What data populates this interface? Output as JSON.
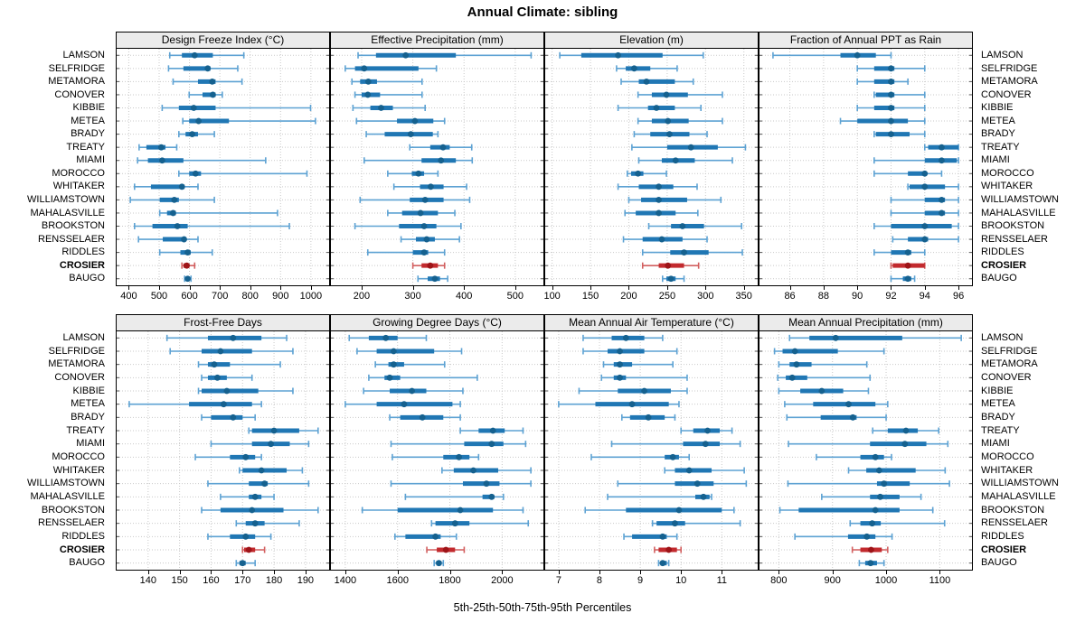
{
  "title": "Annual Climate: sibling",
  "footer": "5th-25th-50th-75th-95th Percentiles",
  "colors": {
    "blue_bar": "#2077b4",
    "blue_line": "#5da2d3",
    "blue_dot": "#15618f",
    "red_bar": "#c22a2e",
    "red_line": "#d25f5f",
    "red_dot": "#9e1418",
    "header_bg": "#ebebeb",
    "grid": "#c9c9c9",
    "edge_tick": "#555555"
  },
  "chart_data": {
    "type": "scatter",
    "subtype": "percentile-dot-interval",
    "percentiles": [
      5,
      25,
      50,
      75,
      95
    ],
    "grid": "dotted",
    "highlight_station": "CROSIER",
    "stations": [
      "LAMSON",
      "SELFRIDGE",
      "METAMORA",
      "CONOVER",
      "KIBBIE",
      "METEA",
      "BRADY",
      "TREATY",
      "MIAMI",
      "MOROCCO",
      "WHITAKER",
      "WILLIAMSTOWN",
      "MAHALASVILLE",
      "BROOKSTON",
      "RENSSELAER",
      "RIDDLES",
      "CROSIER",
      "BAUGO"
    ],
    "panels": [
      {
        "title": "Design Freeze Index (°C)",
        "row": 0,
        "xlim": [
          360,
          1060
        ],
        "ticks": [
          400,
          500,
          600,
          700,
          800,
          900,
          1000
        ],
        "values": [
          [
            535,
            575,
            617,
            677,
            779
          ],
          [
            531,
            580,
            660,
            669,
            759
          ],
          [
            546,
            628,
            675,
            686,
            773
          ],
          [
            599,
            643,
            677,
            686,
            708
          ],
          [
            510,
            565,
            614,
            686,
            999
          ],
          [
            578,
            599,
            630,
            730,
            1015
          ],
          [
            565,
            587,
            609,
            628,
            682
          ],
          [
            434,
            458,
            507,
            521,
            558
          ],
          [
            429,
            463,
            510,
            580,
            851
          ],
          [
            565,
            599,
            620,
            638,
            987
          ],
          [
            419,
            473,
            575,
            584,
            628
          ],
          [
            405,
            502,
            550,
            565,
            682
          ],
          [
            502,
            526,
            546,
            555,
            890
          ],
          [
            419,
            478,
            560,
            594,
            929
          ],
          [
            432,
            512,
            582,
            589,
            628
          ],
          [
            502,
            570,
            594,
            604,
            675
          ],
          [
            575,
            580,
            591,
            600,
            617
          ],
          [
            584,
            589,
            594,
            600,
            605
          ]
        ]
      },
      {
        "title": "Effective Precipitation (mm)",
        "row": 0,
        "xlim": [
          140,
          555
        ],
        "ticks": [
          200,
          300,
          400,
          500
        ],
        "values": [
          [
            193,
            228,
            286,
            384,
            531
          ],
          [
            168,
            187,
            205,
            311,
            346
          ],
          [
            181,
            197,
            213,
            230,
            318
          ],
          [
            187,
            200,
            212,
            236,
            318
          ],
          [
            183,
            217,
            238,
            261,
            324
          ],
          [
            190,
            269,
            304,
            340,
            362
          ],
          [
            209,
            245,
            296,
            339,
            349
          ],
          [
            294,
            334,
            359,
            372,
            415
          ],
          [
            205,
            317,
            355,
            384,
            416
          ],
          [
            251,
            298,
            311,
            322,
            349
          ],
          [
            263,
            314,
            335,
            360,
            405
          ],
          [
            197,
            294,
            324,
            360,
            411
          ],
          [
            251,
            279,
            315,
            349,
            382
          ],
          [
            187,
            273,
            322,
            346,
            394
          ],
          [
            277,
            306,
            327,
            343,
            391
          ],
          [
            212,
            300,
            322,
            330,
            362
          ],
          [
            300,
            317,
            334,
            349,
            362
          ],
          [
            310,
            329,
            343,
            353,
            368
          ]
        ]
      },
      {
        "title": "Elevation (m)",
        "row": 0,
        "xlim": [
          91,
          368
        ],
        "ticks": [
          100,
          150,
          200,
          250,
          300,
          350
        ],
        "values": [
          [
            110,
            138,
            186,
            244,
            297
          ],
          [
            184,
            196,
            207,
            228,
            263
          ],
          [
            190,
            213,
            223,
            260,
            284
          ],
          [
            212,
            230,
            249,
            277,
            322
          ],
          [
            186,
            225,
            236,
            260,
            294
          ],
          [
            212,
            230,
            251,
            278,
            322
          ],
          [
            207,
            228,
            253,
            279,
            302
          ],
          [
            204,
            250,
            281,
            316,
            352
          ],
          [
            213,
            243,
            261,
            286,
            335
          ],
          [
            198,
            203,
            212,
            219,
            249
          ],
          [
            186,
            213,
            239,
            258,
            289
          ],
          [
            200,
            216,
            239,
            276,
            320
          ],
          [
            195,
            209,
            239,
            261,
            290
          ],
          [
            226,
            255,
            270,
            298,
            347
          ],
          [
            193,
            218,
            243,
            270,
            302
          ],
          [
            218,
            254,
            272,
            304,
            348
          ],
          [
            218,
            239,
            251,
            272,
            291
          ],
          [
            244,
            249,
            255,
            261,
            272
          ]
        ]
      },
      {
        "title": "Fraction of Annual PPT as Rain",
        "row": 0,
        "xlim": [
          84.2,
          96.8
        ],
        "ticks": [
          86,
          88,
          90,
          92,
          94,
          96
        ],
        "values": [
          [
            85.0,
            89.0,
            90.0,
            91.1,
            92.0
          ],
          [
            90.0,
            91.0,
            92.0,
            92.2,
            94.0
          ],
          [
            90.0,
            91.0,
            92.0,
            92.2,
            93.0
          ],
          [
            91.0,
            91.1,
            92.0,
            92.2,
            94.0
          ],
          [
            90.0,
            91.0,
            92.0,
            92.2,
            94.0
          ],
          [
            89.0,
            90.0,
            92.0,
            93.0,
            94.0
          ],
          [
            91.0,
            91.1,
            92.0,
            93.1,
            94.0
          ],
          [
            94.0,
            94.2,
            95.0,
            96.0,
            96.0
          ],
          [
            91.0,
            94.0,
            95.0,
            95.9,
            96.0
          ],
          [
            91.0,
            93.0,
            94.0,
            94.1,
            95.0
          ],
          [
            93.0,
            93.1,
            94.0,
            95.2,
            96.0
          ],
          [
            92.0,
            94.0,
            95.0,
            95.2,
            96.0
          ],
          [
            92.0,
            94.0,
            95.0,
            95.2,
            96.0
          ],
          [
            91.0,
            92.0,
            94.0,
            95.6,
            96.0
          ],
          [
            92.1,
            93.0,
            94.0,
            94.2,
            96.0
          ],
          [
            91.0,
            92.0,
            93.0,
            93.2,
            94.0
          ],
          [
            92.0,
            92.1,
            93.0,
            94.0,
            94.0
          ],
          [
            92.0,
            92.7,
            93.0,
            93.2,
            93.4
          ]
        ]
      },
      {
        "title": "Frost-Free Days",
        "row": 1,
        "xlim": [
          130,
          197.5
        ],
        "ticks": [
          140,
          150,
          160,
          170,
          180,
          190
        ],
        "values": [
          [
            146,
            159,
            167,
            176,
            184
          ],
          [
            147,
            157,
            163,
            173,
            186
          ],
          [
            156,
            159,
            161,
            166,
            182
          ],
          [
            157,
            159,
            162,
            165,
            173
          ],
          [
            156,
            157,
            165,
            175,
            186
          ],
          [
            134,
            153,
            164,
            173,
            176
          ],
          [
            157,
            160,
            167,
            170,
            174
          ],
          [
            172,
            173,
            180,
            188,
            194
          ],
          [
            160,
            173,
            179,
            185,
            191
          ],
          [
            155,
            166,
            171,
            174,
            176
          ],
          [
            169,
            170,
            176,
            184,
            189
          ],
          [
            159,
            172,
            177,
            178,
            191
          ],
          [
            163,
            172,
            174,
            176,
            180
          ],
          [
            157,
            163,
            173,
            183,
            194
          ],
          [
            168,
            171,
            174,
            177,
            188
          ],
          [
            159,
            166,
            171,
            174,
            179
          ],
          [
            170,
            170.5,
            172,
            174,
            177
          ],
          [
            168,
            169,
            170,
            171,
            174
          ]
        ]
      },
      {
        "title": "Growing Degree Days (°C)",
        "row": 1,
        "xlim": [
          1345,
          2158
        ],
        "ticks": [
          1400,
          1600,
          1800,
          2000
        ],
        "values": [
          [
            1415,
            1490,
            1555,
            1600,
            1710
          ],
          [
            1445,
            1520,
            1585,
            1740,
            1845
          ],
          [
            1515,
            1565,
            1585,
            1625,
            1780
          ],
          [
            1490,
            1550,
            1570,
            1610,
            1905
          ],
          [
            1470,
            1570,
            1655,
            1710,
            1850
          ],
          [
            1400,
            1520,
            1625,
            1810,
            1840
          ],
          [
            1570,
            1610,
            1695,
            1775,
            1840
          ],
          [
            1840,
            1910,
            1965,
            2010,
            2080
          ],
          [
            1575,
            1855,
            1960,
            2005,
            2090
          ],
          [
            1580,
            1775,
            1835,
            1875,
            1910
          ],
          [
            1770,
            1815,
            1890,
            1985,
            2110
          ],
          [
            1575,
            1850,
            1940,
            1990,
            2110
          ],
          [
            1630,
            1925,
            1960,
            1970,
            2005
          ],
          [
            1465,
            1600,
            1840,
            1965,
            2080
          ],
          [
            1730,
            1745,
            1820,
            1875,
            2100
          ],
          [
            1590,
            1630,
            1745,
            1765,
            1825
          ],
          [
            1712,
            1750,
            1785,
            1820,
            1855
          ],
          [
            1740,
            1748,
            1758,
            1768,
            1775
          ]
        ]
      },
      {
        "title": "Mean Annual Air Temperature (°C)",
        "row": 1,
        "xlim": [
          6.67,
          11.88
        ],
        "ticks": [
          7,
          8,
          9,
          10,
          11
        ],
        "values": [
          [
            7.6,
            8.3,
            8.65,
            9.1,
            9.55
          ],
          [
            7.6,
            8.2,
            8.5,
            9.1,
            9.9
          ],
          [
            8.1,
            8.35,
            8.5,
            8.8,
            9.8
          ],
          [
            8.05,
            8.35,
            8.5,
            8.65,
            10.15
          ],
          [
            7.5,
            8.45,
            9.1,
            9.75,
            10.15
          ],
          [
            7.0,
            7.9,
            8.8,
            9.7,
            9.95
          ],
          [
            8.55,
            8.75,
            9.2,
            9.6,
            9.85
          ],
          [
            10.0,
            10.3,
            10.65,
            10.95,
            11.25
          ],
          [
            8.3,
            10.05,
            10.6,
            10.95,
            11.45
          ],
          [
            7.8,
            9.6,
            9.8,
            9.95,
            10.2
          ],
          [
            9.6,
            9.85,
            10.2,
            10.75,
            11.55
          ],
          [
            8.45,
            9.85,
            10.4,
            10.8,
            11.6
          ],
          [
            8.2,
            10.35,
            10.55,
            10.7,
            10.75
          ],
          [
            7.65,
            8.65,
            9.95,
            11.0,
            11.3
          ],
          [
            9.3,
            9.4,
            9.85,
            10.1,
            11.45
          ],
          [
            8.6,
            8.8,
            9.55,
            9.65,
            9.9
          ],
          [
            9.35,
            9.45,
            9.7,
            9.9,
            10.0
          ],
          [
            9.45,
            9.5,
            9.55,
            9.65,
            9.7
          ]
        ]
      },
      {
        "title": "Mean Annual Precipitation (mm)",
        "row": 1,
        "xlim": [
          764,
          1160
        ],
        "ticks": [
          800,
          900,
          1000,
          1100
        ],
        "values": [
          [
            820,
            857,
            906,
            1030,
            1140
          ],
          [
            792,
            807,
            830,
            910,
            996
          ],
          [
            800,
            820,
            833,
            861,
            964
          ],
          [
            798,
            813,
            825,
            853,
            970
          ],
          [
            800,
            840,
            880,
            920,
            967
          ],
          [
            811,
            864,
            930,
            980,
            1003
          ],
          [
            815,
            878,
            938,
            945,
            1000
          ],
          [
            975,
            1003,
            1037,
            1059,
            1098
          ],
          [
            818,
            970,
            1035,
            1075,
            1115
          ],
          [
            870,
            952,
            980,
            996,
            1010
          ],
          [
            930,
            963,
            987,
            1055,
            1110
          ],
          [
            817,
            983,
            996,
            1044,
            1118
          ],
          [
            880,
            970,
            989,
            1025,
            1065
          ],
          [
            802,
            837,
            980,
            1025,
            1087
          ],
          [
            933,
            952,
            974,
            990,
            1109
          ],
          [
            830,
            929,
            964,
            980,
            1011
          ],
          [
            937,
            952,
            972,
            992,
            1003
          ],
          [
            950,
            961,
            971,
            983,
            996
          ]
        ]
      }
    ]
  }
}
